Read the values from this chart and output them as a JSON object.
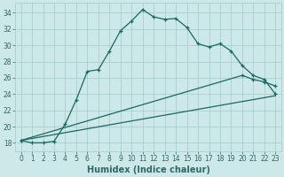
{
  "xlabel": "Humidex (Indice chaleur)",
  "bg_color": "#cce8e8",
  "grid_color": "#aacece",
  "line_color": "#1a6860",
  "xlim": [
    -0.5,
    23.5
  ],
  "ylim": [
    17.0,
    35.2
  ],
  "yticks": [
    18,
    20,
    22,
    24,
    26,
    28,
    30,
    32,
    34
  ],
  "xticks": [
    0,
    1,
    2,
    3,
    4,
    5,
    6,
    7,
    8,
    9,
    10,
    11,
    12,
    13,
    14,
    15,
    16,
    17,
    18,
    19,
    20,
    21,
    22,
    23
  ],
  "series1_x": [
    0,
    1,
    2,
    3,
    4,
    5,
    6,
    7,
    8,
    9,
    10,
    11,
    12,
    13,
    14,
    15,
    16,
    17,
    18,
    19,
    20,
    21,
    22,
    23
  ],
  "series1_y": [
    18.3,
    18.0,
    18.0,
    18.2,
    20.3,
    23.3,
    26.8,
    27.0,
    29.3,
    31.8,
    33.0,
    34.4,
    33.5,
    33.2,
    33.3,
    32.2,
    30.2,
    29.8,
    30.2,
    29.3,
    27.5,
    26.3,
    25.8,
    24.0
  ],
  "series2_x": [
    0,
    20,
    21,
    22,
    23
  ],
  "series2_y": [
    18.3,
    26.3,
    25.8,
    25.5,
    25.0
  ],
  "series3_x": [
    0,
    23
  ],
  "series3_y": [
    18.3,
    23.8
  ],
  "tick_color": "#336666",
  "xlabel_color": "#336666",
  "xlabel_fontsize": 7,
  "tick_fontsize": 5.5
}
